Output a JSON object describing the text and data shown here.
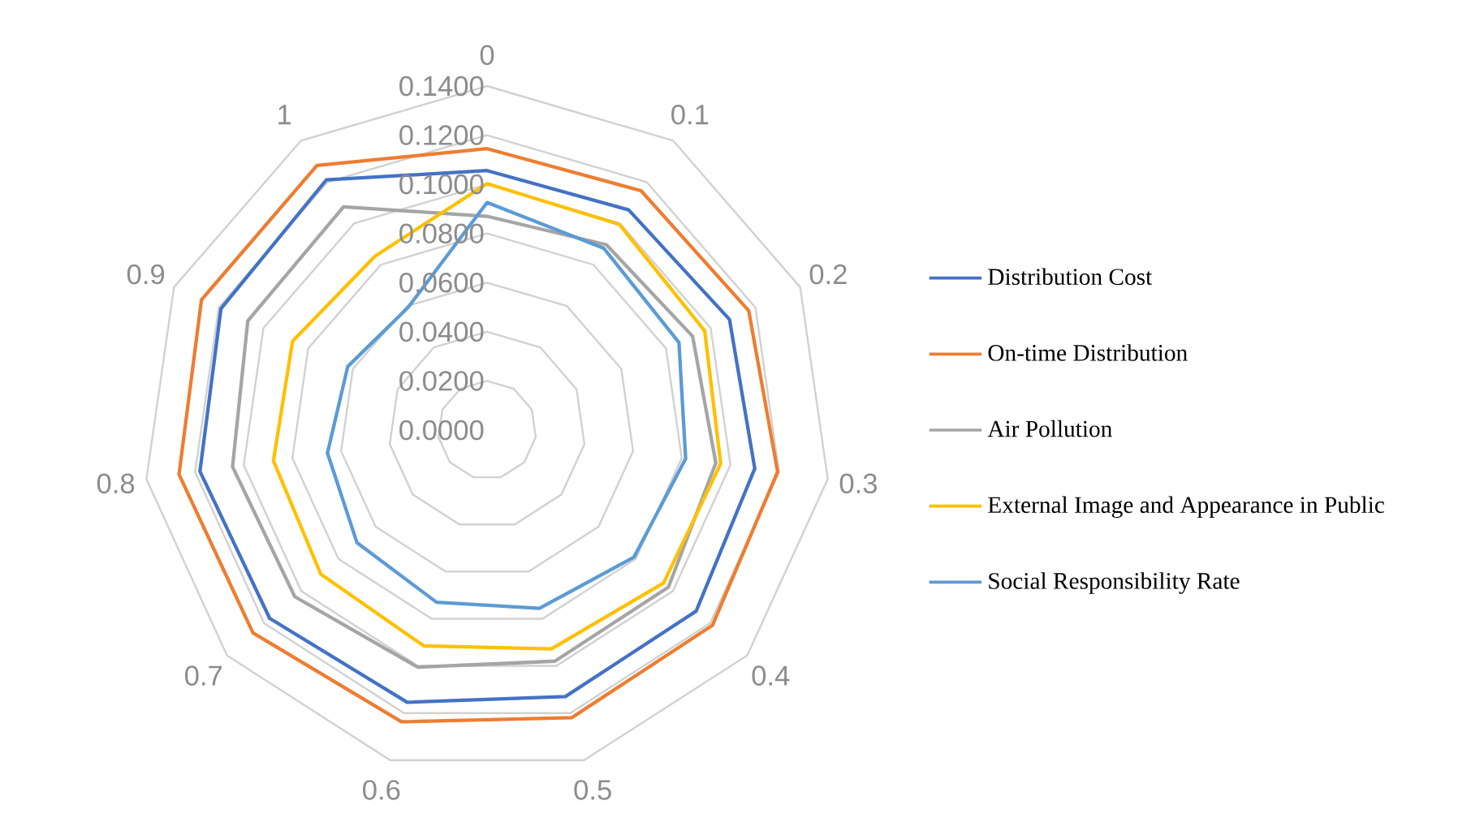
{
  "chart_data": {
    "type": "radar",
    "categories": [
      "0",
      "0.1",
      "0.2",
      "0.3",
      "0.4",
      "0.5",
      "0.6",
      "0.7",
      "0.8",
      "0.9",
      "1"
    ],
    "series": [
      {
        "name": "Distribution Cost",
        "color": "#4472c4",
        "values": [
          0.1056,
          0.1065,
          0.1084,
          0.11,
          0.1125,
          0.113,
          0.1154,
          0.117,
          0.118,
          0.119,
          0.121
        ]
      },
      {
        "name": "On-time Distribution",
        "color": "#ed7d31",
        "values": [
          0.1145,
          0.1158,
          0.117,
          0.1194,
          0.1213,
          0.122,
          0.1237,
          0.126,
          0.1266,
          0.1277,
          0.128
        ]
      },
      {
        "name": "Air Pollution",
        "color": "#a5a5a5",
        "values": [
          0.087,
          0.0897,
          0.0919,
          0.094,
          0.0976,
          0.098,
          0.1005,
          0.1035,
          0.1046,
          0.107,
          0.108
        ]
      },
      {
        "name": "External Image and Appearance in Public",
        "color": "#ffc000",
        "values": [
          0.1003,
          0.0995,
          0.0973,
          0.096,
          0.095,
          0.0928,
          0.0915,
          0.0895,
          0.0878,
          0.087,
          0.0842
        ]
      },
      {
        "name": "Social Responsibility Rate",
        "color": "#5b9bd5",
        "values": [
          0.0926,
          0.0879,
          0.0858,
          0.0816,
          0.079,
          0.0756,
          0.073,
          0.07,
          0.0656,
          0.0623,
          0.0594
        ]
      }
    ],
    "ylim": [
      0,
      0.14
    ],
    "yticks": [
      {
        "value": 0,
        "label": "0.0000"
      },
      {
        "value": 0.02,
        "label": "0.0200"
      },
      {
        "value": 0.04,
        "label": "0.0400"
      },
      {
        "value": 0.06,
        "label": "0.0600"
      },
      {
        "value": 0.08,
        "label": "0.0800"
      },
      {
        "value": 0.1,
        "label": "0.1000"
      },
      {
        "value": 0.12,
        "label": "0.1200"
      },
      {
        "value": 0.14,
        "label": "0.1400"
      }
    ],
    "grid": true,
    "legend": "right"
  }
}
